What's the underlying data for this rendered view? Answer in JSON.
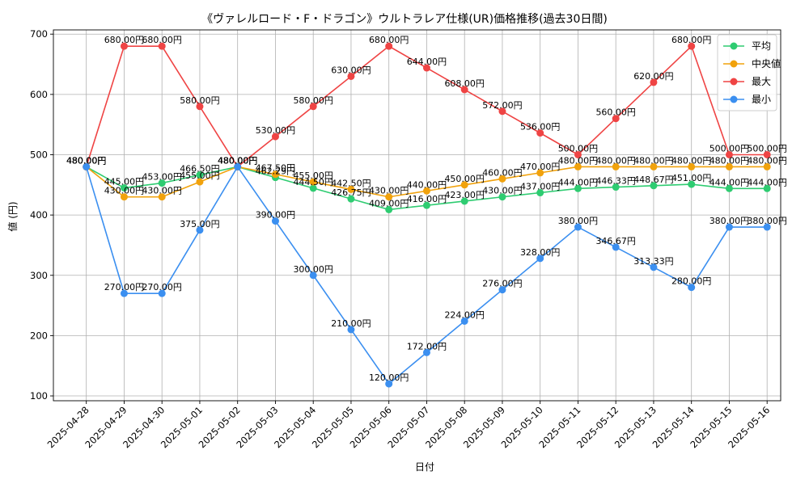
{
  "chart_data": {
    "type": "line",
    "title": "《ヴァレルロード・F・ドラゴン》ウルトラレア仕様(UR)価格推移(過去30日間)",
    "xlabel": "日付",
    "ylabel": "値 (円)",
    "ylim": [
      92,
      707
    ],
    "yticks": [
      100,
      200,
      300,
      400,
      500,
      600,
      700
    ],
    "grid": true,
    "legend_position": "top-right",
    "label_suffix": "円",
    "categories": [
      "2025-04-28",
      "2025-04-29",
      "2025-04-30",
      "2025-05-01",
      "2025-05-02",
      "2025-05-03",
      "2025-05-04",
      "2025-05-05",
      "2025-05-06",
      "2025-05-07",
      "2025-05-08",
      "2025-05-09",
      "2025-05-10",
      "2025-05-11",
      "2025-05-12",
      "2025-05-13",
      "2025-05-14",
      "2025-05-15",
      "2025-05-16"
    ],
    "series": [
      {
        "name": "平均",
        "color": "#2ecc71",
        "values": [
          480.0,
          445.0,
          453.0,
          466.5,
          480.0,
          462.29,
          444.5,
          426.75,
          409.0,
          416.0,
          423.0,
          430.0,
          437.0,
          444.0,
          446.33,
          448.67,
          451.0,
          444.0,
          444.0
        ]
      },
      {
        "name": "中央値",
        "color": "#f1a20c",
        "values": [
          480.0,
          430.0,
          430.0,
          455.0,
          480.0,
          467.5,
          455.0,
          442.5,
          430.0,
          440.0,
          450.0,
          460.0,
          470.0,
          480.0,
          480.0,
          480.0,
          480.0,
          480.0,
          480.0
        ]
      },
      {
        "name": "最大",
        "color": "#ef4444",
        "values": [
          480.0,
          680.0,
          680.0,
          580.0,
          480.0,
          530.0,
          580.0,
          630.0,
          680.0,
          644.0,
          608.0,
          572.0,
          536.0,
          500.0,
          560.0,
          620.0,
          680.0,
          500.0,
          500.0
        ]
      },
      {
        "name": "最小",
        "color": "#3b8ff0",
        "values": [
          480.0,
          270.0,
          270.0,
          375.0,
          480.0,
          390.0,
          300.0,
          210.0,
          120.0,
          172.0,
          224.0,
          276.0,
          328.0,
          380.0,
          346.67,
          313.33,
          280.0,
          380.0,
          380.0
        ]
      }
    ]
  }
}
